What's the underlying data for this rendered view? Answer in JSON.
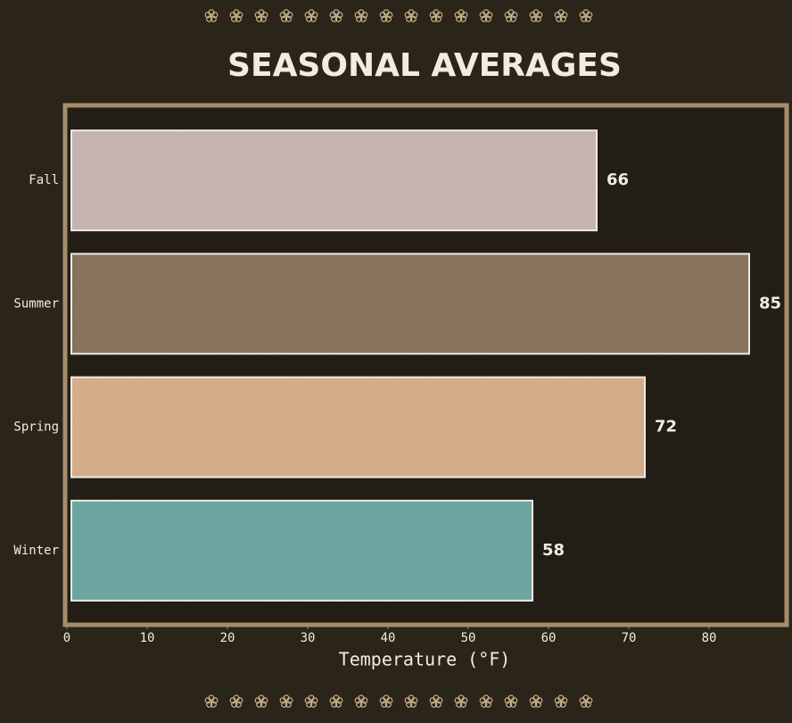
{
  "chart_data": {
    "type": "bar",
    "orientation": "horizontal",
    "title": "SEASONAL AVERAGES",
    "xlabel": "Temperature (°F)",
    "categories": [
      "Winter",
      "Spring",
      "Summer",
      "Fall"
    ],
    "values": [
      58,
      72,
      85,
      66
    ],
    "colors": [
      "#6fa9a4",
      "#d9b08d",
      "#8c7560",
      "#c9b7b3"
    ],
    "xlim": [
      0,
      90
    ],
    "xticks": [
      0,
      10,
      20,
      30,
      40,
      50,
      60,
      70,
      80
    ],
    "grid": false
  }
}
